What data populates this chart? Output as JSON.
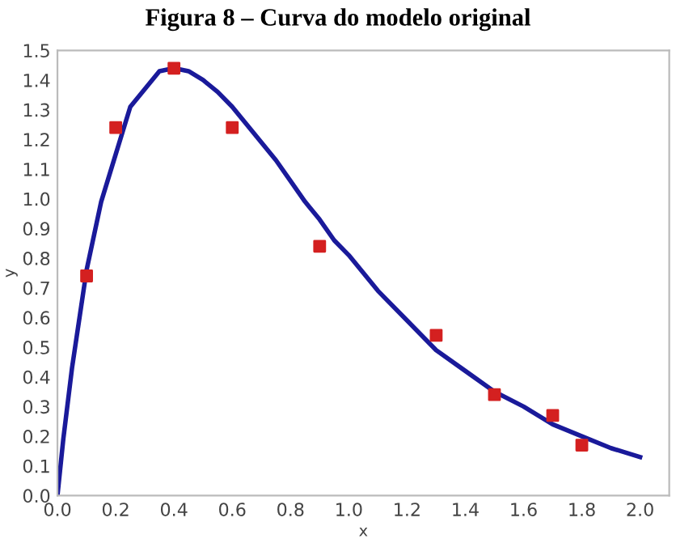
{
  "chart_data": {
    "type": "line",
    "title": "Figura 8 – Curva do modelo original",
    "xlabel": "x",
    "ylabel": "y",
    "xlim": [
      0,
      2.1
    ],
    "ylim": [
      0,
      1.5
    ],
    "xticks": [
      {
        "value": 0,
        "label": "0.0"
      },
      {
        "value": 0.2,
        "label": "0.2"
      },
      {
        "value": 0.4,
        "label": "0.4"
      },
      {
        "value": 0.6,
        "label": "0.6"
      },
      {
        "value": 0.8,
        "label": "0.8"
      },
      {
        "value": 1.0,
        "label": "1.0"
      },
      {
        "value": 1.2,
        "label": "1.2"
      },
      {
        "value": 1.4,
        "label": "1.4"
      },
      {
        "value": 1.6,
        "label": "1.6"
      },
      {
        "value": 1.8,
        "label": "1.8"
      },
      {
        "value": 2.0,
        "label": "2.0"
      }
    ],
    "yticks": [
      {
        "value": 0,
        "label": "0.0"
      },
      {
        "value": 0.1,
        "label": "0.1"
      },
      {
        "value": 0.2,
        "label": "0.2"
      },
      {
        "value": 0.3,
        "label": "0.3"
      },
      {
        "value": 0.4,
        "label": "0.4"
      },
      {
        "value": 0.5,
        "label": "0.5"
      },
      {
        "value": 0.6,
        "label": "0.6"
      },
      {
        "value": 0.7,
        "label": "0.7"
      },
      {
        "value": 0.8,
        "label": "0.8"
      },
      {
        "value": 0.9,
        "label": "0.9"
      },
      {
        "value": 1.0,
        "label": "1.0"
      },
      {
        "value": 1.1,
        "label": "1.1"
      },
      {
        "value": 1.2,
        "label": "1.2"
      },
      {
        "value": 1.3,
        "label": "1.3"
      },
      {
        "value": 1.4,
        "label": "1.4"
      },
      {
        "value": 1.5,
        "label": "1.5"
      }
    ],
    "grid": false,
    "series": [
      {
        "color": "#1a1a9a",
        "marker": "none",
        "line_style": "solid",
        "x": [
          0,
          0.02,
          0.05,
          0.1,
          0.15,
          0.2,
          0.25,
          0.3,
          0.35,
          0.4,
          0.45,
          0.5,
          0.55,
          0.6,
          0.65,
          0.7,
          0.75,
          0.8,
          0.85,
          0.9,
          0.95,
          1.0,
          1.1,
          1.2,
          1.3,
          1.4,
          1.5,
          1.6,
          1.7,
          1.8,
          1.9,
          2.0
        ],
        "values": [
          0,
          0.19,
          0.43,
          0.76,
          0.99,
          1.15,
          1.31,
          1.37,
          1.43,
          1.44,
          1.43,
          1.4,
          1.36,
          1.31,
          1.25,
          1.19,
          1.13,
          1.06,
          0.99,
          0.93,
          0.86,
          0.81,
          0.69,
          0.59,
          0.49,
          0.42,
          0.35,
          0.3,
          0.24,
          0.2,
          0.16,
          0.13
        ]
      },
      {
        "type": "scatter",
        "color": "#d42020",
        "marker": "square",
        "x": [
          0.1,
          0.2,
          0.4,
          0.6,
          0.9,
          1.3,
          1.5,
          1.7,
          1.8
        ],
        "values": [
          0.74,
          1.24,
          1.44,
          1.24,
          0.84,
          0.54,
          0.34,
          0.27,
          0.17
        ]
      }
    ]
  }
}
